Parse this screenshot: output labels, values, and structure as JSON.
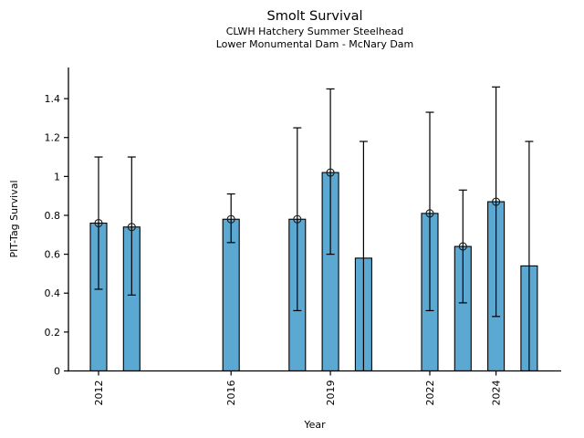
{
  "chart_data": {
    "type": "bar",
    "title": "Smolt Survival",
    "subtitle1": "CLWH Hatchery Summer Steelhead",
    "subtitle2": "Lower Monumental Dam - McNary Dam",
    "xlabel": "Year",
    "ylabel": "PIT-Tag Survival",
    "grid": false,
    "legend": "none",
    "ylim": [
      0,
      1.56
    ],
    "yticks": [
      0,
      0.2,
      0.4,
      0.6,
      0.8,
      1.0,
      1.2,
      1.4
    ],
    "ytick_labels": [
      "0",
      "0.2",
      "0.4",
      "0.6",
      "0.8",
      "1",
      "1.2",
      "1.4"
    ],
    "xtick_years": [
      2012,
      2016,
      2019,
      2022,
      2024
    ],
    "xtick_labels": [
      "2012",
      "2016",
      "2019",
      "2022",
      "2024"
    ],
    "bar_color": "#5ba8d3",
    "bar_edge_color": "#000000",
    "errorbar_color": "#000000",
    "marker_style": "open-circle",
    "series": [
      {
        "year": 2012,
        "value": 0.76,
        "ci_low": 0.42,
        "ci_high": 1.1,
        "marker": true,
        "ci_low_capped": true
      },
      {
        "year": 2013,
        "value": 0.74,
        "ci_low": 0.39,
        "ci_high": 1.1,
        "marker": true,
        "ci_low_capped": true
      },
      {
        "year": 2016,
        "value": 0.78,
        "ci_low": 0.66,
        "ci_high": 0.91,
        "marker": true,
        "ci_low_capped": true
      },
      {
        "year": 2018,
        "value": 0.78,
        "ci_low": 0.31,
        "ci_high": 1.25,
        "marker": true,
        "ci_low_capped": true
      },
      {
        "year": 2019,
        "value": 1.02,
        "ci_low": 0.6,
        "ci_high": 1.45,
        "marker": true,
        "ci_low_capped": true
      },
      {
        "year": 2020,
        "value": 0.58,
        "ci_low": 0.0,
        "ci_high": 1.18,
        "marker": false,
        "ci_low_capped": false
      },
      {
        "year": 2022,
        "value": 0.81,
        "ci_low": 0.31,
        "ci_high": 1.33,
        "marker": true,
        "ci_low_capped": true
      },
      {
        "year": 2023,
        "value": 0.64,
        "ci_low": 0.35,
        "ci_high": 0.93,
        "marker": true,
        "ci_low_capped": true
      },
      {
        "year": 2024,
        "value": 0.87,
        "ci_low": 0.28,
        "ci_high": 1.46,
        "marker": true,
        "ci_low_capped": true
      },
      {
        "year": 2025,
        "value": 0.54,
        "ci_low": 0.0,
        "ci_high": 1.18,
        "marker": false,
        "ci_low_capped": false
      }
    ]
  }
}
